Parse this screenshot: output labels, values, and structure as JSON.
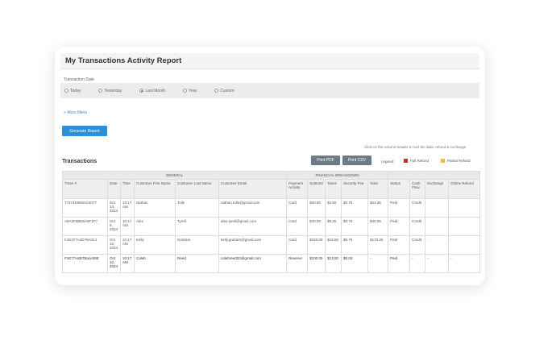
{
  "report": {
    "title": "My Transactions Activity Report"
  },
  "filter": {
    "label": "Transaction Date",
    "options": [
      {
        "label": "Today",
        "selected": false
      },
      {
        "label": "Yesterday",
        "selected": false
      },
      {
        "label": "Last Month",
        "selected": true
      },
      {
        "label": "Year",
        "selected": false
      },
      {
        "label": "Custom",
        "selected": false
      }
    ]
  },
  "more_link": "More filters",
  "generate_button": "Generate Report",
  "note": "Click on the column header to sort the data, refund & exchange",
  "transactions": {
    "title": "Transactions",
    "pdf_button": "Print PDF",
    "csv_button": "Print CSV",
    "legend_label": "Legend:",
    "legend": [
      {
        "label": "Full Refund",
        "color": "#e02424"
      },
      {
        "label": "Partial Refund",
        "color": "#f2c40f"
      }
    ],
    "groups": {
      "general": "GENERAL",
      "financial": "FINANCIAL BREAKDOWN"
    },
    "columns": [
      "Trans #",
      "Date",
      "Time",
      "Customer First Name",
      "Customer Last Name",
      "Customer Email",
      "Payment Activity",
      "Subtotal",
      "Taxes",
      "Security Fee",
      "Total",
      "Status",
      "Cash Flow",
      "Exchange",
      "Online Refund"
    ],
    "rows": [
      [
        "77274E9D8AC5077",
        "Oct 14, 2024",
        "10:17 AM",
        "Nathan",
        "Tolle",
        "nathan.tolle@gmail.com",
        "Card",
        "$20.00",
        "$2.60",
        "$0.75",
        "$23.35",
        "Paid",
        "Credit",
        "",
        ""
      ],
      [
        "A9A3F8BD5A9F1F7",
        "Oct 9, 2024",
        "10:17 AM",
        "Alex",
        "Tyrell",
        "alex.tyrell@gmail.com",
        "Card",
        "$40.00",
        "$5.20",
        "$0.75",
        "$45.95",
        "Paid",
        "Credit",
        "",
        ""
      ],
      [
        "F1E377A4D78A0C1",
        "Oct 10, 2024",
        "10:17 AM",
        "Kelly",
        "Graham",
        "kelly.graham@gmail.com",
        "Card",
        "$150.00",
        "$19.50",
        "$0.75",
        "$170.25",
        "Paid",
        "Credit",
        "-",
        "-"
      ],
      [
        "F1E77A8D7Bace39E",
        "Oct 10, 2024",
        "10:17 AM",
        "Caleb",
        "Reed",
        "calebreed32@gmail.com",
        "Reserve",
        "$100.00",
        "$13.00",
        "$0.00",
        "-",
        "Paid",
        "-",
        "-",
        "-"
      ]
    ]
  }
}
